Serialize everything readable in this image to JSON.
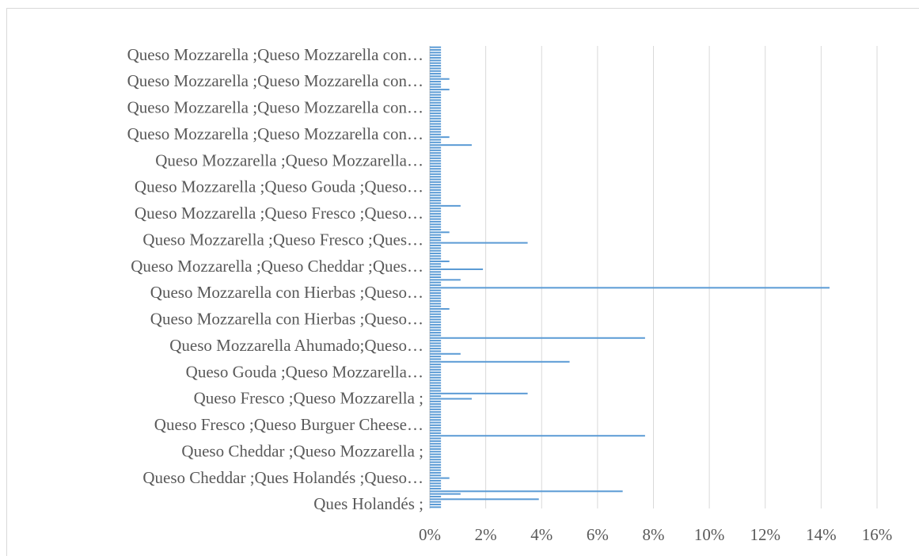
{
  "chart_data": {
    "type": "barh",
    "color": "#5b9bd5",
    "grid": true,
    "categories": [
      "Ques Holandés ;",
      null,
      null,
      null,
      null,
      null,
      null,
      null,
      null,
      null,
      "Queso Cheddar ;Ques Holandés ;Queso…",
      null,
      null,
      null,
      null,
      null,
      null,
      null,
      null,
      null,
      "Queso Cheddar ;Queso Mozzarella ;",
      null,
      null,
      null,
      null,
      null,
      null,
      null,
      null,
      null,
      "Queso Fresco ;Queso Burguer Cheese…",
      null,
      null,
      null,
      null,
      null,
      null,
      null,
      null,
      null,
      "Queso Fresco ;Queso Mozzarella ;",
      null,
      null,
      null,
      null,
      null,
      null,
      null,
      null,
      null,
      "Queso Gouda ;Queso Mozzarella…",
      null,
      null,
      null,
      null,
      null,
      null,
      null,
      null,
      null,
      "Queso Mozzarella Ahumado;Queso…",
      null,
      null,
      null,
      null,
      null,
      null,
      null,
      null,
      null,
      "Queso Mozzarella con Hierbas ;Queso…",
      null,
      null,
      null,
      null,
      null,
      null,
      null,
      null,
      null,
      "Queso Mozzarella con Hierbas ;Queso…",
      null,
      null,
      null,
      null,
      null,
      null,
      null,
      null,
      null,
      "Queso Mozzarella ;Queso Cheddar ;Ques…",
      null,
      null,
      null,
      null,
      null,
      null,
      null,
      null,
      null,
      "Queso Mozzarella ;Queso Fresco ;Ques…",
      null,
      null,
      null,
      null,
      null,
      null,
      null,
      null,
      null,
      "Queso Mozzarella ;Queso Fresco ;Queso…",
      null,
      null,
      null,
      null,
      null,
      null,
      null,
      null,
      null,
      "Queso Mozzarella ;Queso Gouda ;Queso…",
      null,
      null,
      null,
      null,
      null,
      null,
      null,
      null,
      null,
      "Queso Mozzarella ;Queso Mozzarella…",
      null,
      null,
      null,
      null,
      null,
      null,
      null,
      null,
      null,
      "Queso Mozzarella ;Queso Mozzarella con…",
      null,
      null,
      null,
      null,
      null,
      null,
      null,
      null,
      null,
      "Queso Mozzarella ;Queso Mozzarella con…",
      null,
      null,
      null,
      null,
      null,
      null,
      null,
      null,
      null,
      "Queso Mozzarella ;Queso Mozzarella con…",
      null,
      null,
      null,
      null,
      null,
      null,
      null,
      null,
      null,
      "Queso Mozzarella ;Queso Mozzarella con…",
      null,
      null,
      null,
      null
    ],
    "values": [
      0.4,
      0.4,
      0.4,
      3.9,
      0.4,
      1.1,
      6.9,
      0.4,
      0.4,
      0.4,
      0.4,
      0.7,
      0.4,
      0.4,
      0.4,
      0.4,
      0.4,
      0.4,
      0.4,
      0.4,
      0.4,
      0.4,
      0.4,
      0.4,
      0.4,
      0.4,
      0.4,
      7.7,
      0.4,
      0.4,
      0.4,
      0.4,
      0.4,
      0.4,
      0.4,
      0.4,
      0.4,
      0.4,
      0.4,
      0.4,
      0.4,
      1.5,
      0.4,
      3.5,
      0.4,
      0.4,
      0.4,
      0.4,
      0.4,
      0.4,
      0.4,
      0.4,
      0.4,
      0.4,
      0.4,
      5.0,
      0.4,
      0.4,
      1.1,
      0.4,
      0.4,
      0.4,
      0.4,
      0.4,
      7.7,
      0.4,
      0.4,
      0.4,
      0.4,
      0.4,
      0.4,
      0.4,
      0.4,
      0.4,
      0.4,
      0.7,
      0.4,
      0.4,
      0.4,
      0.4,
      0.4,
      0.4,
      0.4,
      14.3,
      0.4,
      0.4,
      1.1,
      0.4,
      0.4,
      0.4,
      1.9,
      0.4,
      0.4,
      0.7,
      0.4,
      0.4,
      0.4,
      0.4,
      0.4,
      0.4,
      3.5,
      0.4,
      0.4,
      0.4,
      0.7,
      0.4,
      0.4,
      0.4,
      0.4,
      0.4,
      0.4,
      0.4,
      0.4,
      0.4,
      1.1,
      0.4,
      0.4,
      0.4,
      0.4,
      0.4,
      0.4,
      0.4,
      0.4,
      0.4,
      0.4,
      0.4,
      0.4,
      0.4,
      0.4,
      0.4,
      0.4,
      0.4,
      0.4,
      0.4,
      0.4,
      0.4,
      0.4,
      1.5,
      0.4,
      0.4,
      0.7,
      0.4,
      0.4,
      0.4,
      0.4,
      0.4,
      0.4,
      0.4,
      0.4,
      0.4,
      0.4,
      0.4,
      0.4,
      0.4,
      0.4,
      0.4,
      0.4,
      0.4,
      0.7,
      0.4,
      0.4,
      0.4,
      0.7,
      0.4,
      0.4,
      0.4,
      0.4,
      0.4,
      0.4,
      0.4,
      0.4,
      0.4,
      0.4,
      0.4,
      0.4
    ],
    "xlim": [
      0,
      16
    ],
    "xticks": [
      {
        "value": 0,
        "label": "0%"
      },
      {
        "value": 2,
        "label": "2%"
      },
      {
        "value": 4,
        "label": "4%"
      },
      {
        "value": 6,
        "label": "6%"
      },
      {
        "value": 8,
        "label": "8%"
      },
      {
        "value": 10,
        "label": "10%"
      },
      {
        "value": 12,
        "label": "12%"
      },
      {
        "value": 14,
        "label": "14%"
      },
      {
        "value": 16,
        "label": "16%"
      }
    ]
  }
}
